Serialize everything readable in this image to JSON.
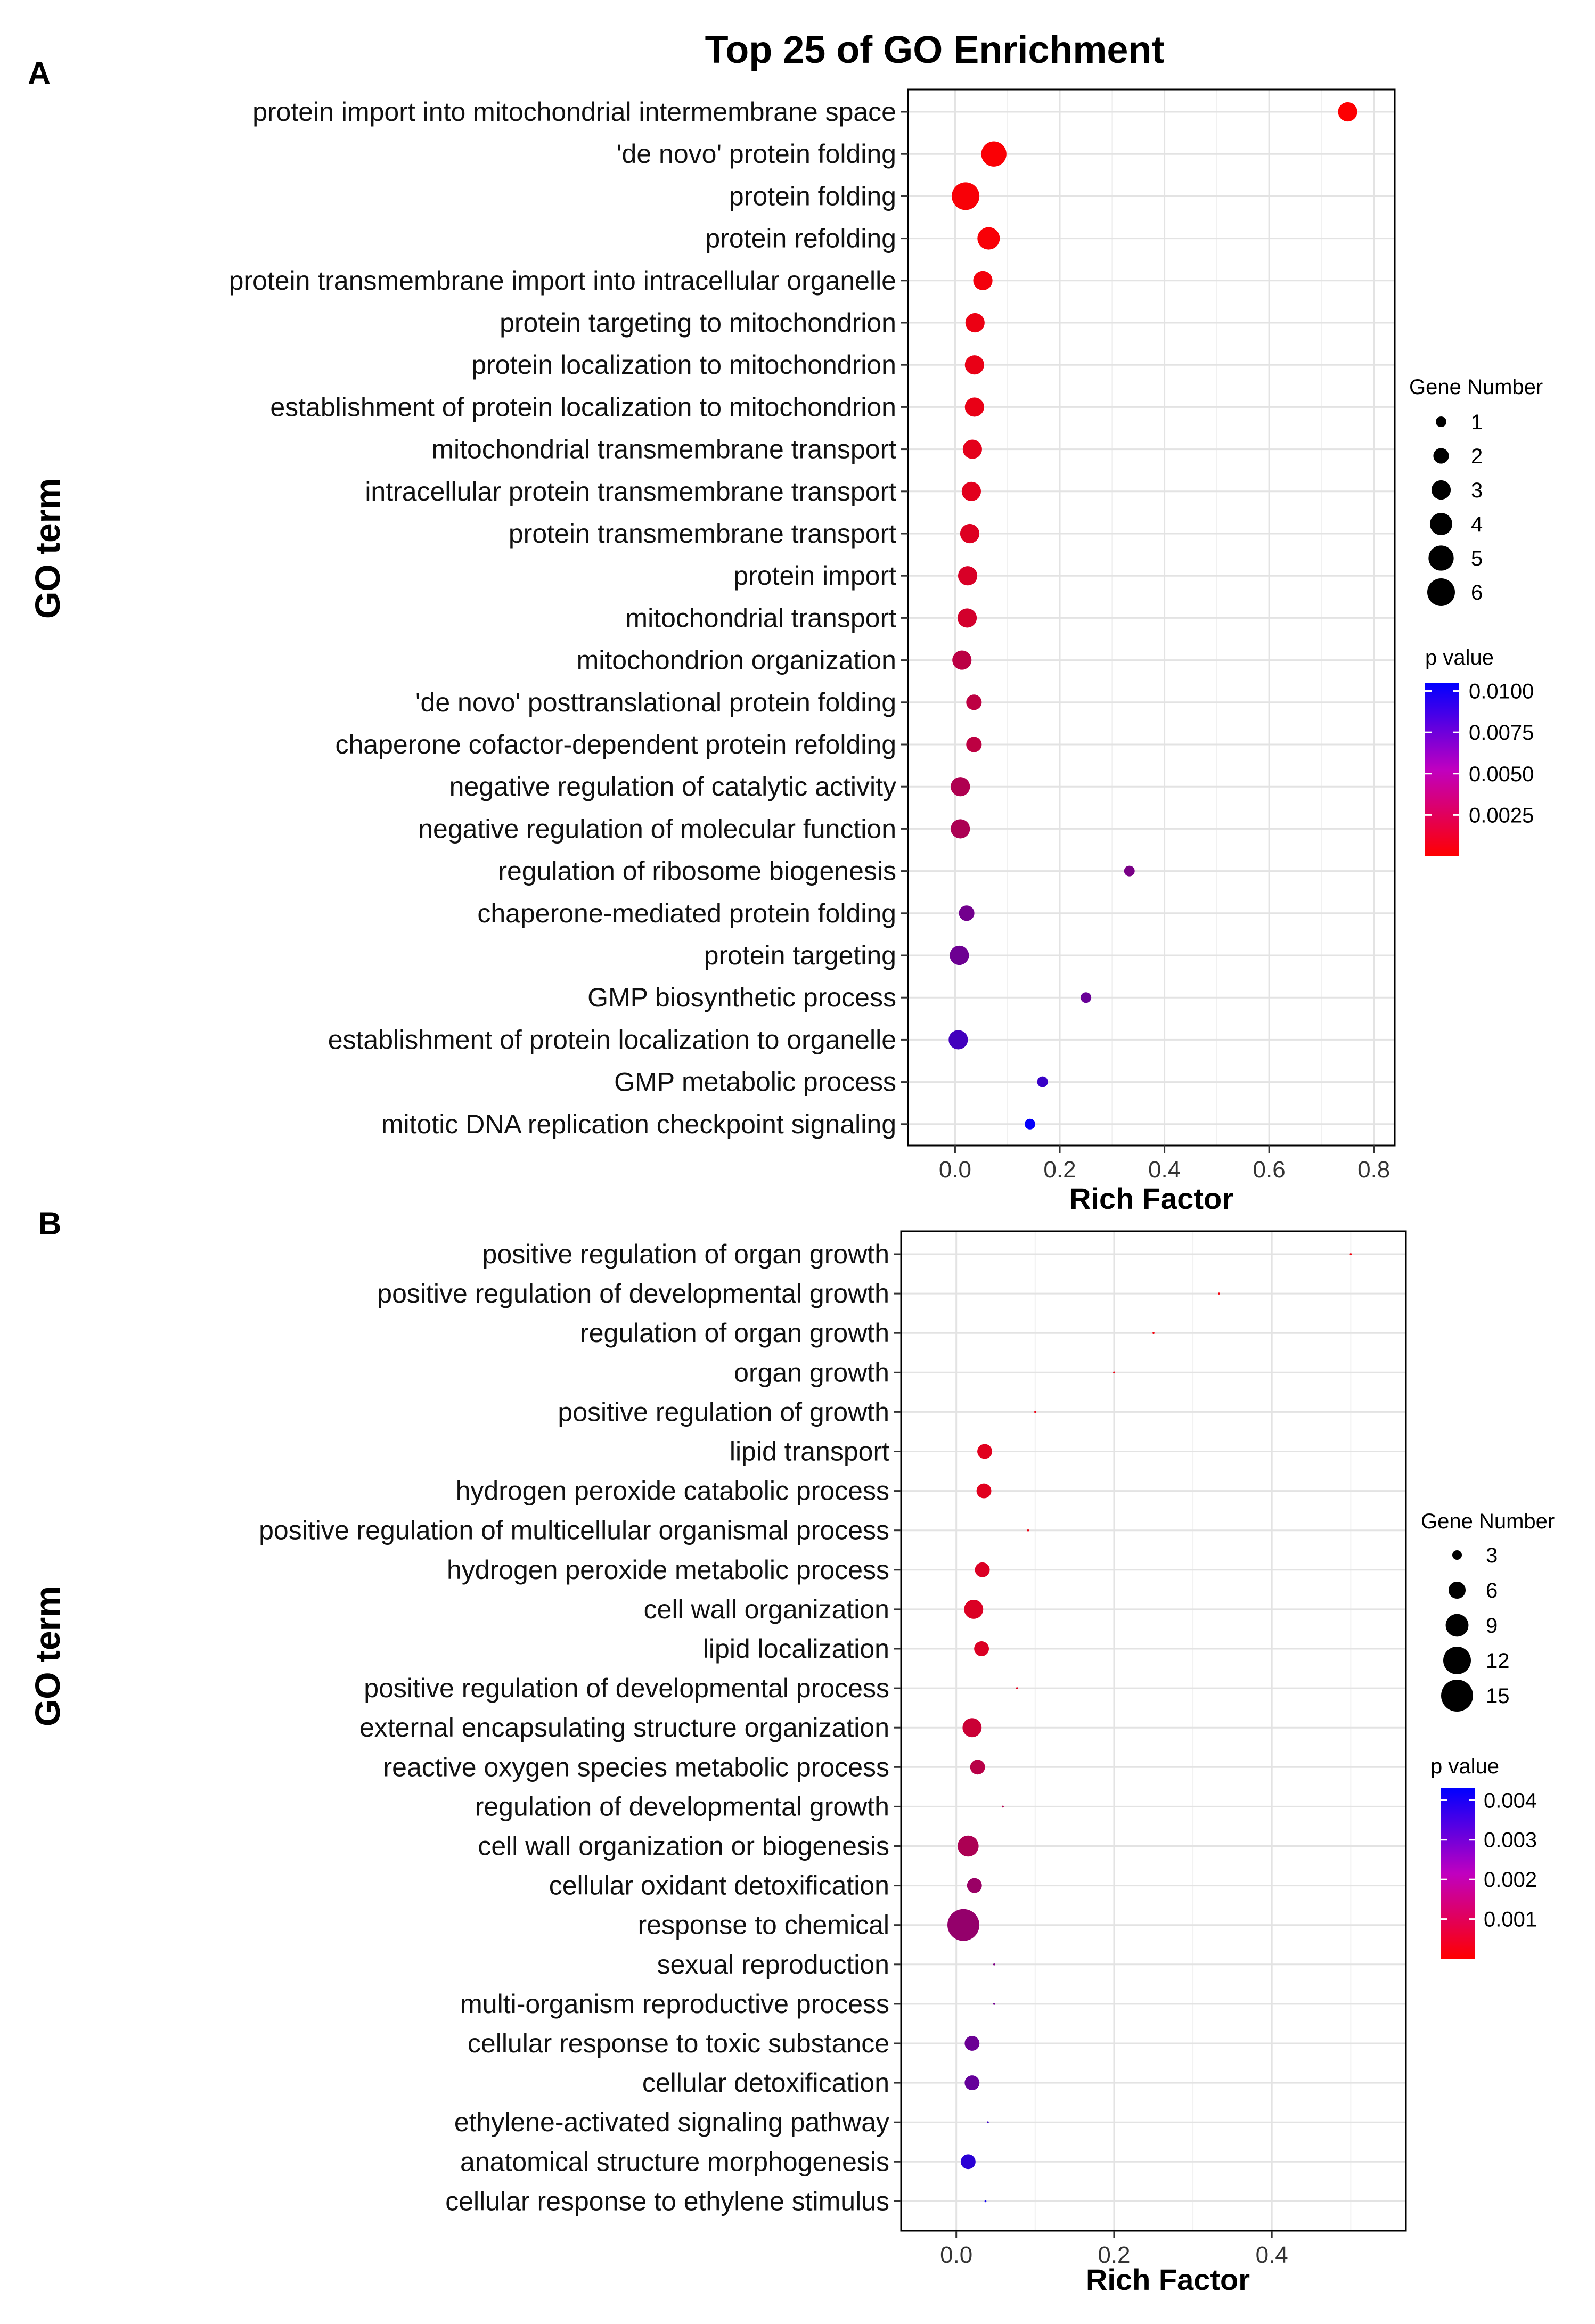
{
  "figure": {
    "title": "Top 25 of GO Enrichment"
  },
  "chart_data": [
    {
      "panel": "A",
      "type": "scatter",
      "subtype": "bubble",
      "xlabel": "Rich Factor",
      "ylabel": "GO term",
      "xlim": [
        -0.09,
        0.84
      ],
      "xticks": [
        0.0,
        0.2,
        0.4,
        0.6,
        0.8
      ],
      "xtick_labels": [
        "0.0",
        "0.2",
        "0.4",
        "0.6",
        "0.8"
      ],
      "grid": true,
      "size_legend": {
        "title": "Gene Number",
        "values": [
          1,
          2,
          3,
          4,
          5,
          6
        ],
        "labels": [
          "1",
          "2",
          "3",
          "4",
          "5",
          "6"
        ]
      },
      "color_legend": {
        "title": "p value",
        "min": 0.0,
        "max": 0.0105,
        "ticks": [
          0.01,
          0.0075,
          0.005,
          0.0025
        ],
        "labels": [
          "0.0100",
          "0.0075",
          "0.0050",
          "0.0025"
        ],
        "low_color": "#ff0000",
        "high_color": "#0000ff"
      },
      "terms": [
        {
          "term": "protein import into mitochondrial intermembrane space",
          "rich": 0.75,
          "genes": 3,
          "p": 0.0001
        },
        {
          "term": "'de novo' protein folding",
          "rich": 0.074,
          "genes": 5,
          "p": 0.0002
        },
        {
          "term": "protein folding",
          "rich": 0.02,
          "genes": 6,
          "p": 0.0003
        },
        {
          "term": "protein refolding",
          "rich": 0.064,
          "genes": 4,
          "p": 0.0003
        },
        {
          "term": "protein transmembrane import into intracellular organelle",
          "rich": 0.053,
          "genes": 3,
          "p": 0.0005
        },
        {
          "term": "protein targeting to mitochondrion",
          "rich": 0.038,
          "genes": 3,
          "p": 0.0008
        },
        {
          "term": "protein localization to mitochondrion",
          "rich": 0.037,
          "genes": 3,
          "p": 0.0009
        },
        {
          "term": "establishment of protein localization to mitochondrion",
          "rich": 0.037,
          "genes": 3,
          "p": 0.0009
        },
        {
          "term": "mitochondrial transmembrane transport",
          "rich": 0.033,
          "genes": 3,
          "p": 0.0011
        },
        {
          "term": "intracellular protein transmembrane transport",
          "rich": 0.031,
          "genes": 3,
          "p": 0.0012
        },
        {
          "term": "protein transmembrane transport",
          "rich": 0.028,
          "genes": 3,
          "p": 0.0014
        },
        {
          "term": "protein import",
          "rich": 0.024,
          "genes": 3,
          "p": 0.0016
        },
        {
          "term": "mitochondrial transport",
          "rich": 0.023,
          "genes": 3,
          "p": 0.0018
        },
        {
          "term": "mitochondrion organization",
          "rich": 0.013,
          "genes": 3,
          "p": 0.0028
        },
        {
          "term": "'de novo' posttranslational protein folding",
          "rich": 0.036,
          "genes": 2,
          "p": 0.0027
        },
        {
          "term": "chaperone cofactor-dependent protein refolding",
          "rich": 0.036,
          "genes": 2,
          "p": 0.0027
        },
        {
          "term": "negative regulation of catalytic activity",
          "rich": 0.01,
          "genes": 3,
          "p": 0.0033
        },
        {
          "term": "negative regulation of molecular function",
          "rich": 0.01,
          "genes": 3,
          "p": 0.0034
        },
        {
          "term": "regulation of ribosome biogenesis",
          "rich": 0.333,
          "genes": 1,
          "p": 0.0055
        },
        {
          "term": "chaperone-mediated protein folding",
          "rich": 0.022,
          "genes": 2,
          "p": 0.0058
        },
        {
          "term": "protein targeting",
          "rich": 0.008,
          "genes": 3,
          "p": 0.006
        },
        {
          "term": "GMP biosynthetic process",
          "rich": 0.25,
          "genes": 1,
          "p": 0.0062
        },
        {
          "term": "establishment of protein localization to organelle",
          "rich": 0.006,
          "genes": 3,
          "p": 0.0078
        },
        {
          "term": "GMP metabolic process",
          "rich": 0.167,
          "genes": 1,
          "p": 0.0082
        },
        {
          "term": "mitotic DNA replication checkpoint signaling",
          "rich": 0.143,
          "genes": 1,
          "p": 0.0103
        }
      ]
    },
    {
      "panel": "B",
      "type": "scatter",
      "subtype": "bubble",
      "xlabel": "Rich Factor",
      "ylabel": "GO term",
      "xlim": [
        -0.07,
        0.57
      ],
      "xticks": [
        0.0,
        0.2,
        0.4
      ],
      "xtick_labels": [
        "0.0",
        "0.2",
        "0.4"
      ],
      "grid": true,
      "size_legend": {
        "title": "Gene Number",
        "values": [
          3,
          6,
          9,
          12,
          15
        ],
        "labels": [
          "3",
          "6",
          "9",
          "12",
          "15"
        ]
      },
      "color_legend": {
        "title": "p value",
        "min": 0.0,
        "max": 0.0043,
        "ticks": [
          0.004,
          0.003,
          0.002,
          0.001
        ],
        "labels": [
          "0.004",
          "0.003",
          "0.002",
          "0.001"
        ],
        "low_color": "#ff0000",
        "high_color": "#0000ff"
      },
      "terms": [
        {
          "term": "positive regulation of organ growth",
          "rich": 0.5,
          "genes": 1,
          "p": 0.0002
        },
        {
          "term": "positive regulation of developmental growth",
          "rich": 0.333,
          "genes": 1,
          "p": 0.0002
        },
        {
          "term": "regulation of organ growth",
          "rich": 0.25,
          "genes": 1,
          "p": 0.0002
        },
        {
          "term": "organ growth",
          "rich": 0.2,
          "genes": 1,
          "p": 0.0003
        },
        {
          "term": "positive regulation of growth",
          "rich": 0.1,
          "genes": 1,
          "p": 0.0003
        },
        {
          "term": "lipid transport",
          "rich": 0.036,
          "genes": 5,
          "p": 0.0005
        },
        {
          "term": "hydrogen peroxide catabolic process",
          "rich": 0.035,
          "genes": 5,
          "p": 0.0005
        },
        {
          "term": "positive regulation of multicellular organismal process",
          "rich": 0.091,
          "genes": 1,
          "p": 0.0003
        },
        {
          "term": "hydrogen peroxide metabolic process",
          "rich": 0.033,
          "genes": 5,
          "p": 0.0006
        },
        {
          "term": "cell wall organization",
          "rich": 0.022,
          "genes": 7,
          "p": 0.0006
        },
        {
          "term": "lipid localization",
          "rich": 0.032,
          "genes": 5,
          "p": 0.0006
        },
        {
          "term": "positive regulation of developmental process",
          "rich": 0.077,
          "genes": 1,
          "p": 0.0005
        },
        {
          "term": "external encapsulating structure organization",
          "rich": 0.02,
          "genes": 7,
          "p": 0.0009
        },
        {
          "term": "reactive oxygen species metabolic process",
          "rich": 0.027,
          "genes": 5,
          "p": 0.0012
        },
        {
          "term": "regulation of developmental growth",
          "rich": 0.059,
          "genes": 1,
          "p": 0.0013
        },
        {
          "term": "cell wall organization or biogenesis",
          "rich": 0.015,
          "genes": 8,
          "p": 0.0014
        },
        {
          "term": "cellular oxidant detoxification",
          "rich": 0.023,
          "genes": 5,
          "p": 0.0017
        },
        {
          "term": "response to chemical",
          "rich": 0.009,
          "genes": 15,
          "p": 0.0018
        },
        {
          "term": "sexual reproduction",
          "rich": 0.048,
          "genes": 1,
          "p": 0.0022
        },
        {
          "term": "multi-organism reproductive process",
          "rich": 0.048,
          "genes": 1,
          "p": 0.0024
        },
        {
          "term": "cellular response to toxic substance",
          "rich": 0.02,
          "genes": 5,
          "p": 0.0025
        },
        {
          "term": "cellular detoxification",
          "rich": 0.02,
          "genes": 5,
          "p": 0.0026
        },
        {
          "term": "ethylene-activated signaling pathway",
          "rich": 0.04,
          "genes": 1,
          "p": 0.0033
        },
        {
          "term": "anatomical structure morphogenesis",
          "rich": 0.015,
          "genes": 5,
          "p": 0.0036
        },
        {
          "term": "cellular response to ethylene stimulus",
          "rich": 0.037,
          "genes": 1,
          "p": 0.0041
        }
      ]
    }
  ]
}
